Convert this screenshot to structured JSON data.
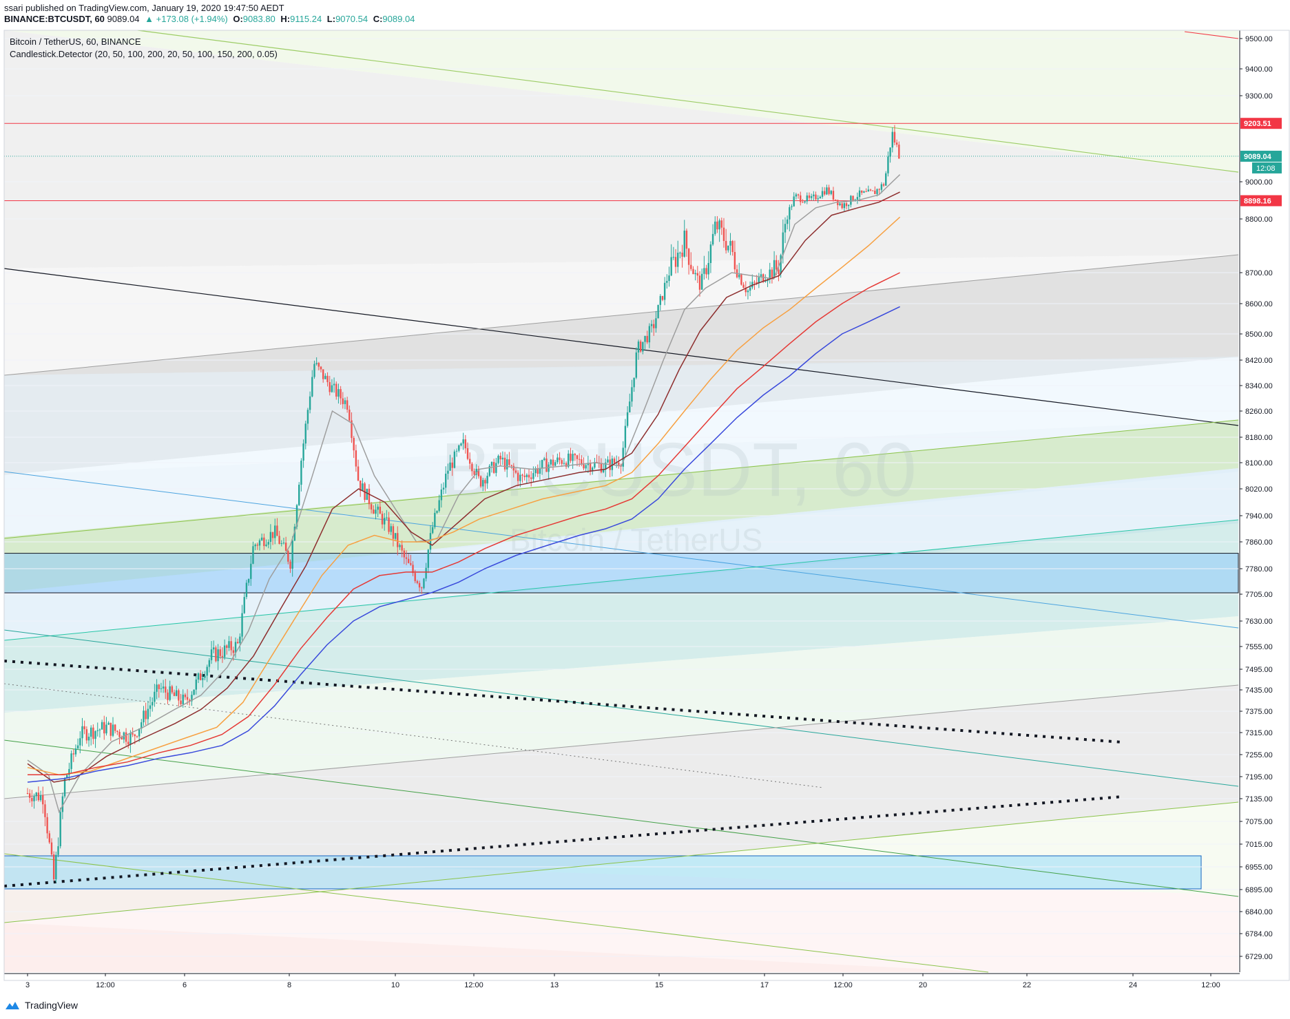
{
  "header": {
    "published": "ssari published on TradingView.com, January 19, 2020 19:47:50 AEDT",
    "symbol": "BINANCE:BTCUSDT, 60",
    "last": "9089.04",
    "change": "▲ +173.08 (+1.94%)",
    "o_label": "O:",
    "o": "9083.80",
    "h_label": "H:",
    "h": "9115.24",
    "l_label": "L:",
    "l": "9070.54",
    "c_label": "C:",
    "c": "9089.04"
  },
  "legend": {
    "title": "Bitcoin / TetherUS, 60, BINANCE",
    "indicator": "Candlestick.Detector (20, 50, 100, 200, 20, 50, 100, 150, 200, 0.05)"
  },
  "watermark": {
    "symbol": "BTCUSDT, 60",
    "name": "Bitcoin / TetherUS"
  },
  "footer": {
    "brand": "TradingView"
  },
  "colors": {
    "up": "#26a69a",
    "down": "#ef5350",
    "grid": "#f0f3fa",
    "ma20": "#9e9e9e",
    "ma50": "#8d2e2e",
    "ma100": "#f7a041",
    "ma150": "#e53935",
    "ma200": "#3949db"
  },
  "chart_data": {
    "type": "candlestick",
    "title": "Bitcoin / TetherUS, 60, BINANCE",
    "ylim": [
      6680,
      9600
    ],
    "y_ticks": [
      "9500.00",
      "9400.00",
      "9300.00",
      "9000.00",
      "8800.00",
      "8700.00",
      "8600.00",
      "8500.00",
      "8420.00",
      "8340.00",
      "8260.00",
      "8180.00",
      "8100.00",
      "8020.00",
      "7940.00",
      "7860.00",
      "7780.00",
      "7705.00",
      "7630.00",
      "7555.00",
      "7495.00",
      "7435.00",
      "7375.00",
      "7315.00",
      "7255.00",
      "7195.00",
      "7135.00",
      "7075.00",
      "7015.00",
      "6955.00",
      "6895.00",
      "6840.00",
      "6784.00",
      "6729.00"
    ],
    "x_ticks": [
      "3",
      "12:00",
      "6",
      "8",
      "10",
      "12:00",
      "13",
      "15",
      "17",
      "12:00",
      "20",
      "22",
      "24",
      "12:00"
    ],
    "price_labels": [
      {
        "value": 9203.51,
        "label": "9203.51",
        "color": "#f23645"
      },
      {
        "value": 9089.04,
        "label": "9089.04",
        "color": "#26a69a",
        "countdown": "12:08"
      },
      {
        "value": 8898.16,
        "label": "8898.16",
        "color": "#f23645"
      }
    ],
    "horizontal_lines": [
      9203.51,
      8898.16,
      7826,
      7709
    ],
    "close_path": [
      {
        "day": 3.0,
        "close": 7150
      },
      {
        "day": 3.3,
        "close": 7140
      },
      {
        "day": 3.5,
        "close": 6920
      },
      {
        "day": 3.7,
        "close": 7180
      },
      {
        "day": 4.0,
        "close": 7310
      },
      {
        "day": 4.5,
        "close": 7330
      },
      {
        "day": 5.0,
        "close": 7300
      },
      {
        "day": 5.5,
        "close": 7440
      },
      {
        "day": 6.0,
        "close": 7400
      },
      {
        "day": 6.5,
        "close": 7530
      },
      {
        "day": 7.0,
        "close": 7560
      },
      {
        "day": 7.3,
        "close": 7850
      },
      {
        "day": 7.7,
        "close": 7890
      },
      {
        "day": 8.0,
        "close": 7800
      },
      {
        "day": 8.2,
        "close": 8100
      },
      {
        "day": 8.45,
        "close": 8410
      },
      {
        "day": 8.8,
        "close": 8330
      },
      {
        "day": 9.1,
        "close": 8280
      },
      {
        "day": 9.3,
        "close": 8040
      },
      {
        "day": 9.6,
        "close": 7960
      },
      {
        "day": 9.9,
        "close": 7900
      },
      {
        "day": 10.2,
        "close": 7800
      },
      {
        "day": 10.5,
        "close": 7730
      },
      {
        "day": 10.7,
        "close": 7900
      },
      {
        "day": 11.0,
        "close": 8080
      },
      {
        "day": 11.3,
        "close": 8160
      },
      {
        "day": 11.6,
        "close": 8040
      },
      {
        "day": 12.0,
        "close": 8110
      },
      {
        "day": 12.4,
        "close": 8050
      },
      {
        "day": 12.8,
        "close": 8090
      },
      {
        "day": 13.2,
        "close": 8110
      },
      {
        "day": 13.6,
        "close": 8100
      },
      {
        "day": 14.0,
        "close": 8090
      },
      {
        "day": 14.3,
        "close": 8110
      },
      {
        "day": 14.6,
        "close": 8450
      },
      {
        "day": 14.9,
        "close": 8520
      },
      {
        "day": 15.2,
        "close": 8700
      },
      {
        "day": 15.5,
        "close": 8760
      },
      {
        "day": 15.8,
        "close": 8660
      },
      {
        "day": 16.1,
        "close": 8790
      },
      {
        "day": 16.4,
        "close": 8740
      },
      {
        "day": 16.7,
        "close": 8640
      },
      {
        "day": 17.0,
        "close": 8690
      },
      {
        "day": 17.3,
        "close": 8710
      },
      {
        "day": 17.6,
        "close": 8920
      },
      {
        "day": 17.9,
        "close": 8900
      },
      {
        "day": 18.2,
        "close": 8960
      },
      {
        "day": 18.5,
        "close": 8870
      },
      {
        "day": 18.8,
        "close": 8930
      },
      {
        "day": 19.1,
        "close": 8940
      },
      {
        "day": 19.3,
        "close": 8990
      },
      {
        "day": 19.45,
        "close": 9170
      },
      {
        "day": 19.6,
        "close": 9089
      }
    ],
    "moving_averages": [
      {
        "name": "20",
        "color": "#9e9e9e",
        "points": [
          [
            3.0,
            7240
          ],
          [
            3.4,
            7200
          ],
          [
            3.6,
            7100
          ],
          [
            4.0,
            7200
          ],
          [
            4.6,
            7290
          ],
          [
            5.2,
            7330
          ],
          [
            5.8,
            7380
          ],
          [
            6.3,
            7420
          ],
          [
            6.8,
            7500
          ],
          [
            7.2,
            7600
          ],
          [
            7.6,
            7750
          ],
          [
            8.0,
            7850
          ],
          [
            8.4,
            8050
          ],
          [
            8.8,
            8260
          ],
          [
            9.2,
            8220
          ],
          [
            9.6,
            8060
          ],
          [
            10.0,
            7960
          ],
          [
            10.4,
            7860
          ],
          [
            10.8,
            7870
          ],
          [
            11.2,
            8000
          ],
          [
            11.6,
            8080
          ],
          [
            12.0,
            8090
          ],
          [
            12.6,
            8080
          ],
          [
            13.2,
            8090
          ],
          [
            13.8,
            8100
          ],
          [
            14.3,
            8090
          ],
          [
            14.7,
            8250
          ],
          [
            15.1,
            8420
          ],
          [
            15.5,
            8580
          ],
          [
            15.9,
            8650
          ],
          [
            16.4,
            8700
          ],
          [
            16.8,
            8690
          ],
          [
            17.2,
            8680
          ],
          [
            17.6,
            8790
          ],
          [
            18.0,
            8860
          ],
          [
            18.4,
            8890
          ],
          [
            18.8,
            8900
          ],
          [
            19.2,
            8930
          ],
          [
            19.6,
            9025
          ]
        ]
      },
      {
        "name": "50",
        "color": "#8d2e2e",
        "points": [
          [
            3.0,
            7230
          ],
          [
            3.5,
            7180
          ],
          [
            3.9,
            7190
          ],
          [
            4.5,
            7250
          ],
          [
            5.2,
            7300
          ],
          [
            5.8,
            7340
          ],
          [
            6.3,
            7380
          ],
          [
            6.8,
            7440
          ],
          [
            7.3,
            7530
          ],
          [
            7.8,
            7660
          ],
          [
            8.3,
            7790
          ],
          [
            8.8,
            7960
          ],
          [
            9.3,
            8020
          ],
          [
            9.8,
            7980
          ],
          [
            10.3,
            7890
          ],
          [
            10.7,
            7850
          ],
          [
            11.2,
            7920
          ],
          [
            11.7,
            7990
          ],
          [
            12.3,
            8030
          ],
          [
            12.9,
            8050
          ],
          [
            13.5,
            8070
          ],
          [
            14.0,
            8080
          ],
          [
            14.5,
            8130
          ],
          [
            15.0,
            8250
          ],
          [
            15.4,
            8390
          ],
          [
            15.8,
            8510
          ],
          [
            16.3,
            8620
          ],
          [
            16.8,
            8660
          ],
          [
            17.3,
            8690
          ],
          [
            17.8,
            8760
          ],
          [
            18.3,
            8820
          ],
          [
            18.8,
            8860
          ],
          [
            19.2,
            8890
          ],
          [
            19.6,
            8945
          ]
        ]
      },
      {
        "name": "100",
        "color": "#f7a041",
        "points": [
          [
            3.0,
            7220
          ],
          [
            3.6,
            7200
          ],
          [
            4.2,
            7210
          ],
          [
            4.8,
            7240
          ],
          [
            5.4,
            7270
          ],
          [
            6.0,
            7300
          ],
          [
            6.6,
            7330
          ],
          [
            7.1,
            7400
          ],
          [
            7.6,
            7520
          ],
          [
            8.1,
            7640
          ],
          [
            8.6,
            7760
          ],
          [
            9.1,
            7850
          ],
          [
            9.6,
            7880
          ],
          [
            10.1,
            7860
          ],
          [
            10.6,
            7860
          ],
          [
            11.1,
            7890
          ],
          [
            11.6,
            7930
          ],
          [
            12.2,
            7960
          ],
          [
            12.8,
            7990
          ],
          [
            13.4,
            8010
          ],
          [
            14.0,
            8030
          ],
          [
            14.5,
            8070
          ],
          [
            15.0,
            8160
          ],
          [
            15.5,
            8260
          ],
          [
            16.0,
            8360
          ],
          [
            16.5,
            8450
          ],
          [
            17.0,
            8520
          ],
          [
            17.5,
            8580
          ],
          [
            18.0,
            8650
          ],
          [
            18.5,
            8710
          ],
          [
            19.0,
            8750
          ],
          [
            19.6,
            8810
          ]
        ]
      },
      {
        "name": "150",
        "color": "#e53935",
        "points": [
          [
            3.0,
            7200
          ],
          [
            3.7,
            7200
          ],
          [
            4.3,
            7220
          ],
          [
            4.9,
            7235
          ],
          [
            5.5,
            7260
          ],
          [
            6.1,
            7280
          ],
          [
            6.7,
            7310
          ],
          [
            7.2,
            7360
          ],
          [
            7.7,
            7450
          ],
          [
            8.2,
            7550
          ],
          [
            8.7,
            7640
          ],
          [
            9.2,
            7720
          ],
          [
            9.7,
            7760
          ],
          [
            10.2,
            7770
          ],
          [
            10.7,
            7770
          ],
          [
            11.2,
            7800
          ],
          [
            11.7,
            7840
          ],
          [
            12.3,
            7880
          ],
          [
            12.9,
            7910
          ],
          [
            13.5,
            7940
          ],
          [
            14.0,
            7960
          ],
          [
            14.5,
            7990
          ],
          [
            15.0,
            8060
          ],
          [
            15.5,
            8150
          ],
          [
            16.0,
            8240
          ],
          [
            16.5,
            8330
          ],
          [
            17.0,
            8400
          ],
          [
            17.5,
            8470
          ],
          [
            18.0,
            8540
          ],
          [
            18.5,
            8600
          ],
          [
            19.0,
            8650
          ],
          [
            19.6,
            8700
          ]
        ]
      },
      {
        "name": "200",
        "color": "#3949db",
        "points": [
          [
            3.0,
            7180
          ],
          [
            3.7,
            7190
          ],
          [
            4.3,
            7210
          ],
          [
            4.9,
            7225
          ],
          [
            5.5,
            7245
          ],
          [
            6.1,
            7260
          ],
          [
            6.7,
            7280
          ],
          [
            7.2,
            7320
          ],
          [
            7.7,
            7390
          ],
          [
            8.2,
            7480
          ],
          [
            8.7,
            7560
          ],
          [
            9.2,
            7630
          ],
          [
            9.7,
            7670
          ],
          [
            10.2,
            7690
          ],
          [
            10.7,
            7710
          ],
          [
            11.2,
            7740
          ],
          [
            11.7,
            7780
          ],
          [
            12.3,
            7820
          ],
          [
            12.9,
            7850
          ],
          [
            13.5,
            7880
          ],
          [
            14.0,
            7900
          ],
          [
            14.5,
            7930
          ],
          [
            15.0,
            7990
          ],
          [
            15.5,
            8080
          ],
          [
            16.0,
            8160
          ],
          [
            16.5,
            8240
          ],
          [
            17.0,
            8310
          ],
          [
            17.5,
            8370
          ],
          [
            18.0,
            8440
          ],
          [
            18.5,
            8500
          ],
          [
            19.0,
            8540
          ],
          [
            19.6,
            8590
          ]
        ]
      }
    ]
  }
}
